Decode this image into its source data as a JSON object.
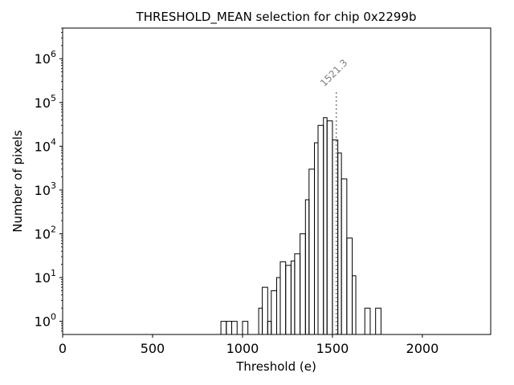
{
  "chart_data": {
    "type": "histogram-step",
    "title": "THRESHOLD_MEAN selection for chip 0x2299b",
    "xlabel": "Threshold (e)",
    "ylabel": "Number of pixels",
    "xlim": [
      0,
      2380
    ],
    "ylim_log10": [
      -0.3,
      6.7
    ],
    "yscale": "log",
    "bin_width": 30,
    "x_ticks": [
      {
        "value": 0,
        "label": "0"
      },
      {
        "value": 500,
        "label": "500"
      },
      {
        "value": 1000,
        "label": "1000"
      },
      {
        "value": 1500,
        "label": "1500"
      },
      {
        "value": 2000,
        "label": "2000"
      }
    ],
    "y_ticks": [
      {
        "exp": 0,
        "base": "10",
        "sup": "0"
      },
      {
        "exp": 1,
        "base": "10",
        "sup": "1"
      },
      {
        "exp": 2,
        "base": "10",
        "sup": "2"
      },
      {
        "exp": 3,
        "base": "10",
        "sup": "3"
      },
      {
        "exp": 4,
        "base": "10",
        "sup": "4"
      },
      {
        "exp": 5,
        "base": "10",
        "sup": "5"
      },
      {
        "exp": 6,
        "base": "10",
        "sup": "6"
      }
    ],
    "bins": [
      {
        "x0": 880,
        "x1": 910,
        "count": 1
      },
      {
        "x0": 910,
        "x1": 940,
        "count": 1
      },
      {
        "x0": 940,
        "x1": 970,
        "count": 1
      },
      {
        "x0": 1000,
        "x1": 1030,
        "count": 1
      },
      {
        "x0": 1090,
        "x1": 1110,
        "count": 2
      },
      {
        "x0": 1110,
        "x1": 1140,
        "count": 6
      },
      {
        "x0": 1140,
        "x1": 1160,
        "count": 1
      },
      {
        "x0": 1160,
        "x1": 1190,
        "count": 5
      },
      {
        "x0": 1190,
        "x1": 1210,
        "count": 10
      },
      {
        "x0": 1210,
        "x1": 1240,
        "count": 23
      },
      {
        "x0": 1240,
        "x1": 1270,
        "count": 19
      },
      {
        "x0": 1270,
        "x1": 1290,
        "count": 24
      },
      {
        "x0": 1290,
        "x1": 1320,
        "count": 35
      },
      {
        "x0": 1320,
        "x1": 1350,
        "count": 100
      },
      {
        "x0": 1350,
        "x1": 1370,
        "count": 600
      },
      {
        "x0": 1370,
        "x1": 1400,
        "count": 3000
      },
      {
        "x0": 1400,
        "x1": 1420,
        "count": 12000
      },
      {
        "x0": 1420,
        "x1": 1450,
        "count": 30000
      },
      {
        "x0": 1450,
        "x1": 1470,
        "count": 45000
      },
      {
        "x0": 1470,
        "x1": 1500,
        "count": 38000
      },
      {
        "x0": 1500,
        "x1": 1530,
        "count": 14000
      },
      {
        "x0": 1530,
        "x1": 1550,
        "count": 7000
      },
      {
        "x0": 1550,
        "x1": 1580,
        "count": 1800
      },
      {
        "x0": 1580,
        "x1": 1610,
        "count": 80
      },
      {
        "x0": 1610,
        "x1": 1630,
        "count": 11
      },
      {
        "x0": 1630,
        "x1": 1660,
        "count": 0
      },
      {
        "x0": 1660,
        "x1": 1680,
        "count": 0
      },
      {
        "x0": 1680,
        "x1": 1710,
        "count": 2
      },
      {
        "x0": 1710,
        "x1": 1740,
        "count": 0
      },
      {
        "x0": 1740,
        "x1": 1770,
        "count": 2
      }
    ],
    "vline": {
      "x": 1521.3,
      "label": "1521.3",
      "color": "#808080"
    },
    "colors": {
      "line": "#000000",
      "background": "#ffffff"
    }
  }
}
